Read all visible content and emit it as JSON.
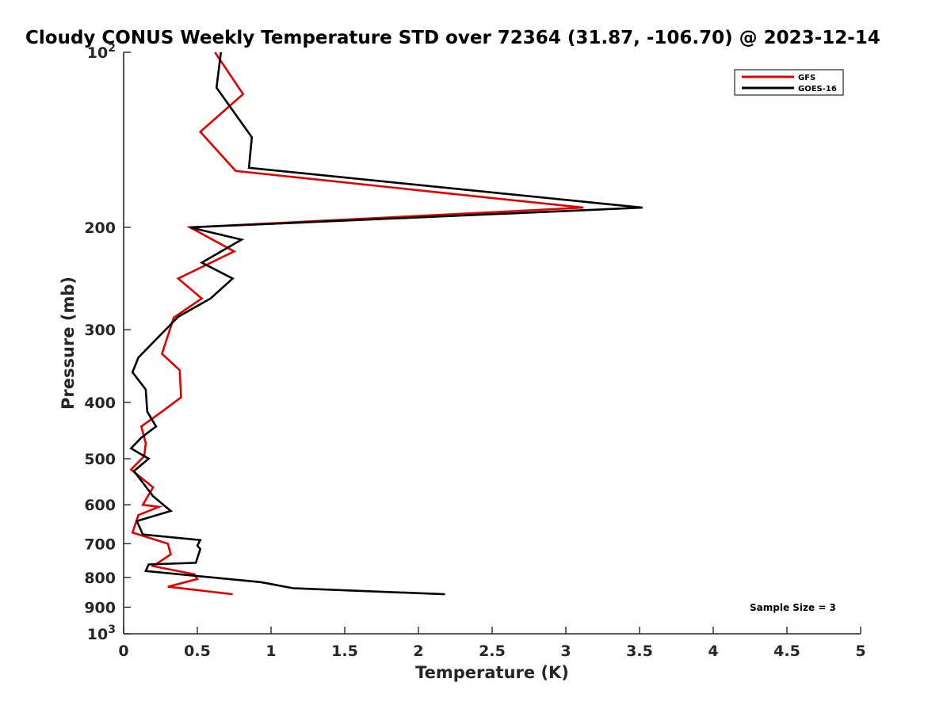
{
  "chart_data": {
    "type": "line",
    "title": "Cloudy CONUS Weekly Temperature STD over 72364 (31.87, -106.70) @ 2023-12-14",
    "xlabel": "Temperature (K)",
    "ylabel": "Pressure (mb)",
    "xlim": [
      0,
      5
    ],
    "ylim": [
      100,
      1000
    ],
    "y_scale": "log",
    "y_reversed": true,
    "grid": false,
    "legend_position": "top-right",
    "x_ticks": [
      0,
      0.5,
      1,
      1.5,
      2,
      2.5,
      3,
      3.5,
      4,
      4.5,
      5
    ],
    "x_tick_labels": [
      "0",
      "0.5",
      "1",
      "1.5",
      "2",
      "2.5",
      "3",
      "3.5",
      "4",
      "4.5",
      "5"
    ],
    "y_ticks": [
      {
        "value": 100,
        "label": "10",
        "sup": "2"
      },
      {
        "value": 200,
        "label": "200",
        "sup": ""
      },
      {
        "value": 300,
        "label": "300",
        "sup": ""
      },
      {
        "value": 400,
        "label": "400",
        "sup": ""
      },
      {
        "value": 500,
        "label": "500",
        "sup": ""
      },
      {
        "value": 600,
        "label": "600",
        "sup": ""
      },
      {
        "value": 700,
        "label": "700",
        "sup": ""
      },
      {
        "value": 800,
        "label": "800",
        "sup": ""
      },
      {
        "value": 900,
        "label": "900",
        "sup": ""
      },
      {
        "value": 1000,
        "label": "10",
        "sup": "3"
      }
    ],
    "series": [
      {
        "name": "GFS",
        "color": "#e00000",
        "x": [
          0.62,
          0.81,
          0.52,
          0.76,
          3.12,
          0.45,
          0.75,
          0.37,
          0.53,
          0.34,
          0.26,
          0.38,
          0.39,
          0.26,
          0.12,
          0.15,
          0.14,
          0.05,
          0.2,
          0.13,
          0.24,
          0.1,
          0.06,
          0.3,
          0.32,
          0.2,
          0.48,
          0.5,
          0.3,
          0.74
        ],
        "y": [
          100,
          118,
          137,
          160,
          185,
          200,
          220,
          245,
          265,
          286,
          330,
          352,
          392,
          415,
          440,
          470,
          495,
          522,
          560,
          600,
          605,
          625,
          670,
          700,
          730,
          765,
          790,
          805,
          830,
          855
        ]
      },
      {
        "name": "GOES-16",
        "color": "#000000",
        "x": [
          0.66,
          0.63,
          0.87,
          0.85,
          3.52,
          0.45,
          0.8,
          0.53,
          0.74,
          0.59,
          0.37,
          0.1,
          0.06,
          0.15,
          0.16,
          0.22,
          0.12,
          0.05,
          0.17,
          0.07,
          0.2,
          0.32,
          0.09,
          0.13,
          0.52,
          0.5,
          0.52,
          0.49,
          0.17,
          0.15,
          0.93,
          1.15,
          2.18
        ],
        "y": [
          100,
          115,
          140,
          158,
          185,
          200,
          210,
          230,
          245,
          265,
          285,
          335,
          355,
          380,
          415,
          440,
          460,
          480,
          500,
          525,
          580,
          615,
          640,
          675,
          690,
          705,
          715,
          755,
          760,
          780,
          815,
          835,
          855
        ]
      }
    ],
    "annotations": [
      "Sample Size = 3"
    ]
  }
}
